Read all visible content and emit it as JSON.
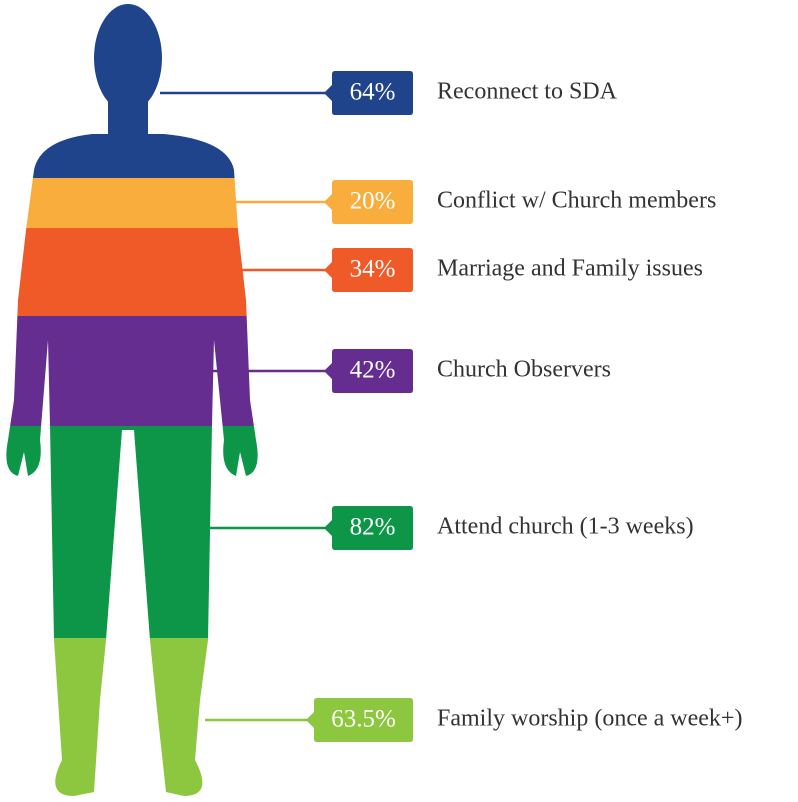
{
  "items": [
    {
      "percent": "64%",
      "text": "Reconnect to SDA",
      "color": "#1f448c"
    },
    {
      "percent": "20%",
      "text": "Conflict w/ Church members",
      "color": "#f9ad3c"
    },
    {
      "percent": "34%",
      "text": "Marriage and Family issues",
      "color": "#f05a28"
    },
    {
      "percent": "42%",
      "text": "Church Observers",
      "color": "#662d91"
    },
    {
      "percent": "82%",
      "text": "Attend church (1-3 weeks)",
      "color": "#0e9648"
    },
    {
      "percent": "63.5%",
      "text": "Family worship (once a week+)",
      "color": "#8dc63f"
    }
  ]
}
